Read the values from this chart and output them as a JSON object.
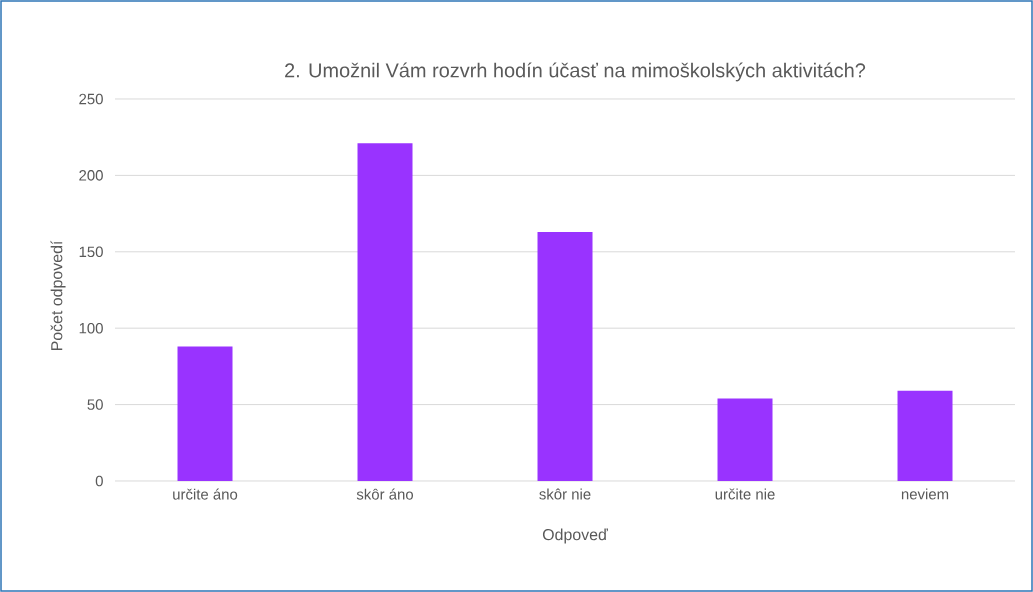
{
  "chart_data": {
    "type": "bar",
    "title": "2. Umožnil Vám rozvrh hodín účasť na mimoškolských aktivitách?",
    "xlabel": "Odpoveď",
    "ylabel": "Počet odpovedí",
    "categories": [
      "určite áno",
      "skôr áno",
      "skôr nie",
      "určite nie",
      "neviem"
    ],
    "values": [
      88,
      221,
      163,
      54,
      59
    ],
    "color": "#9933ff",
    "ylim": [
      0,
      250
    ],
    "yticks": [
      0,
      50,
      100,
      150,
      200,
      250
    ],
    "grid": "y"
  }
}
